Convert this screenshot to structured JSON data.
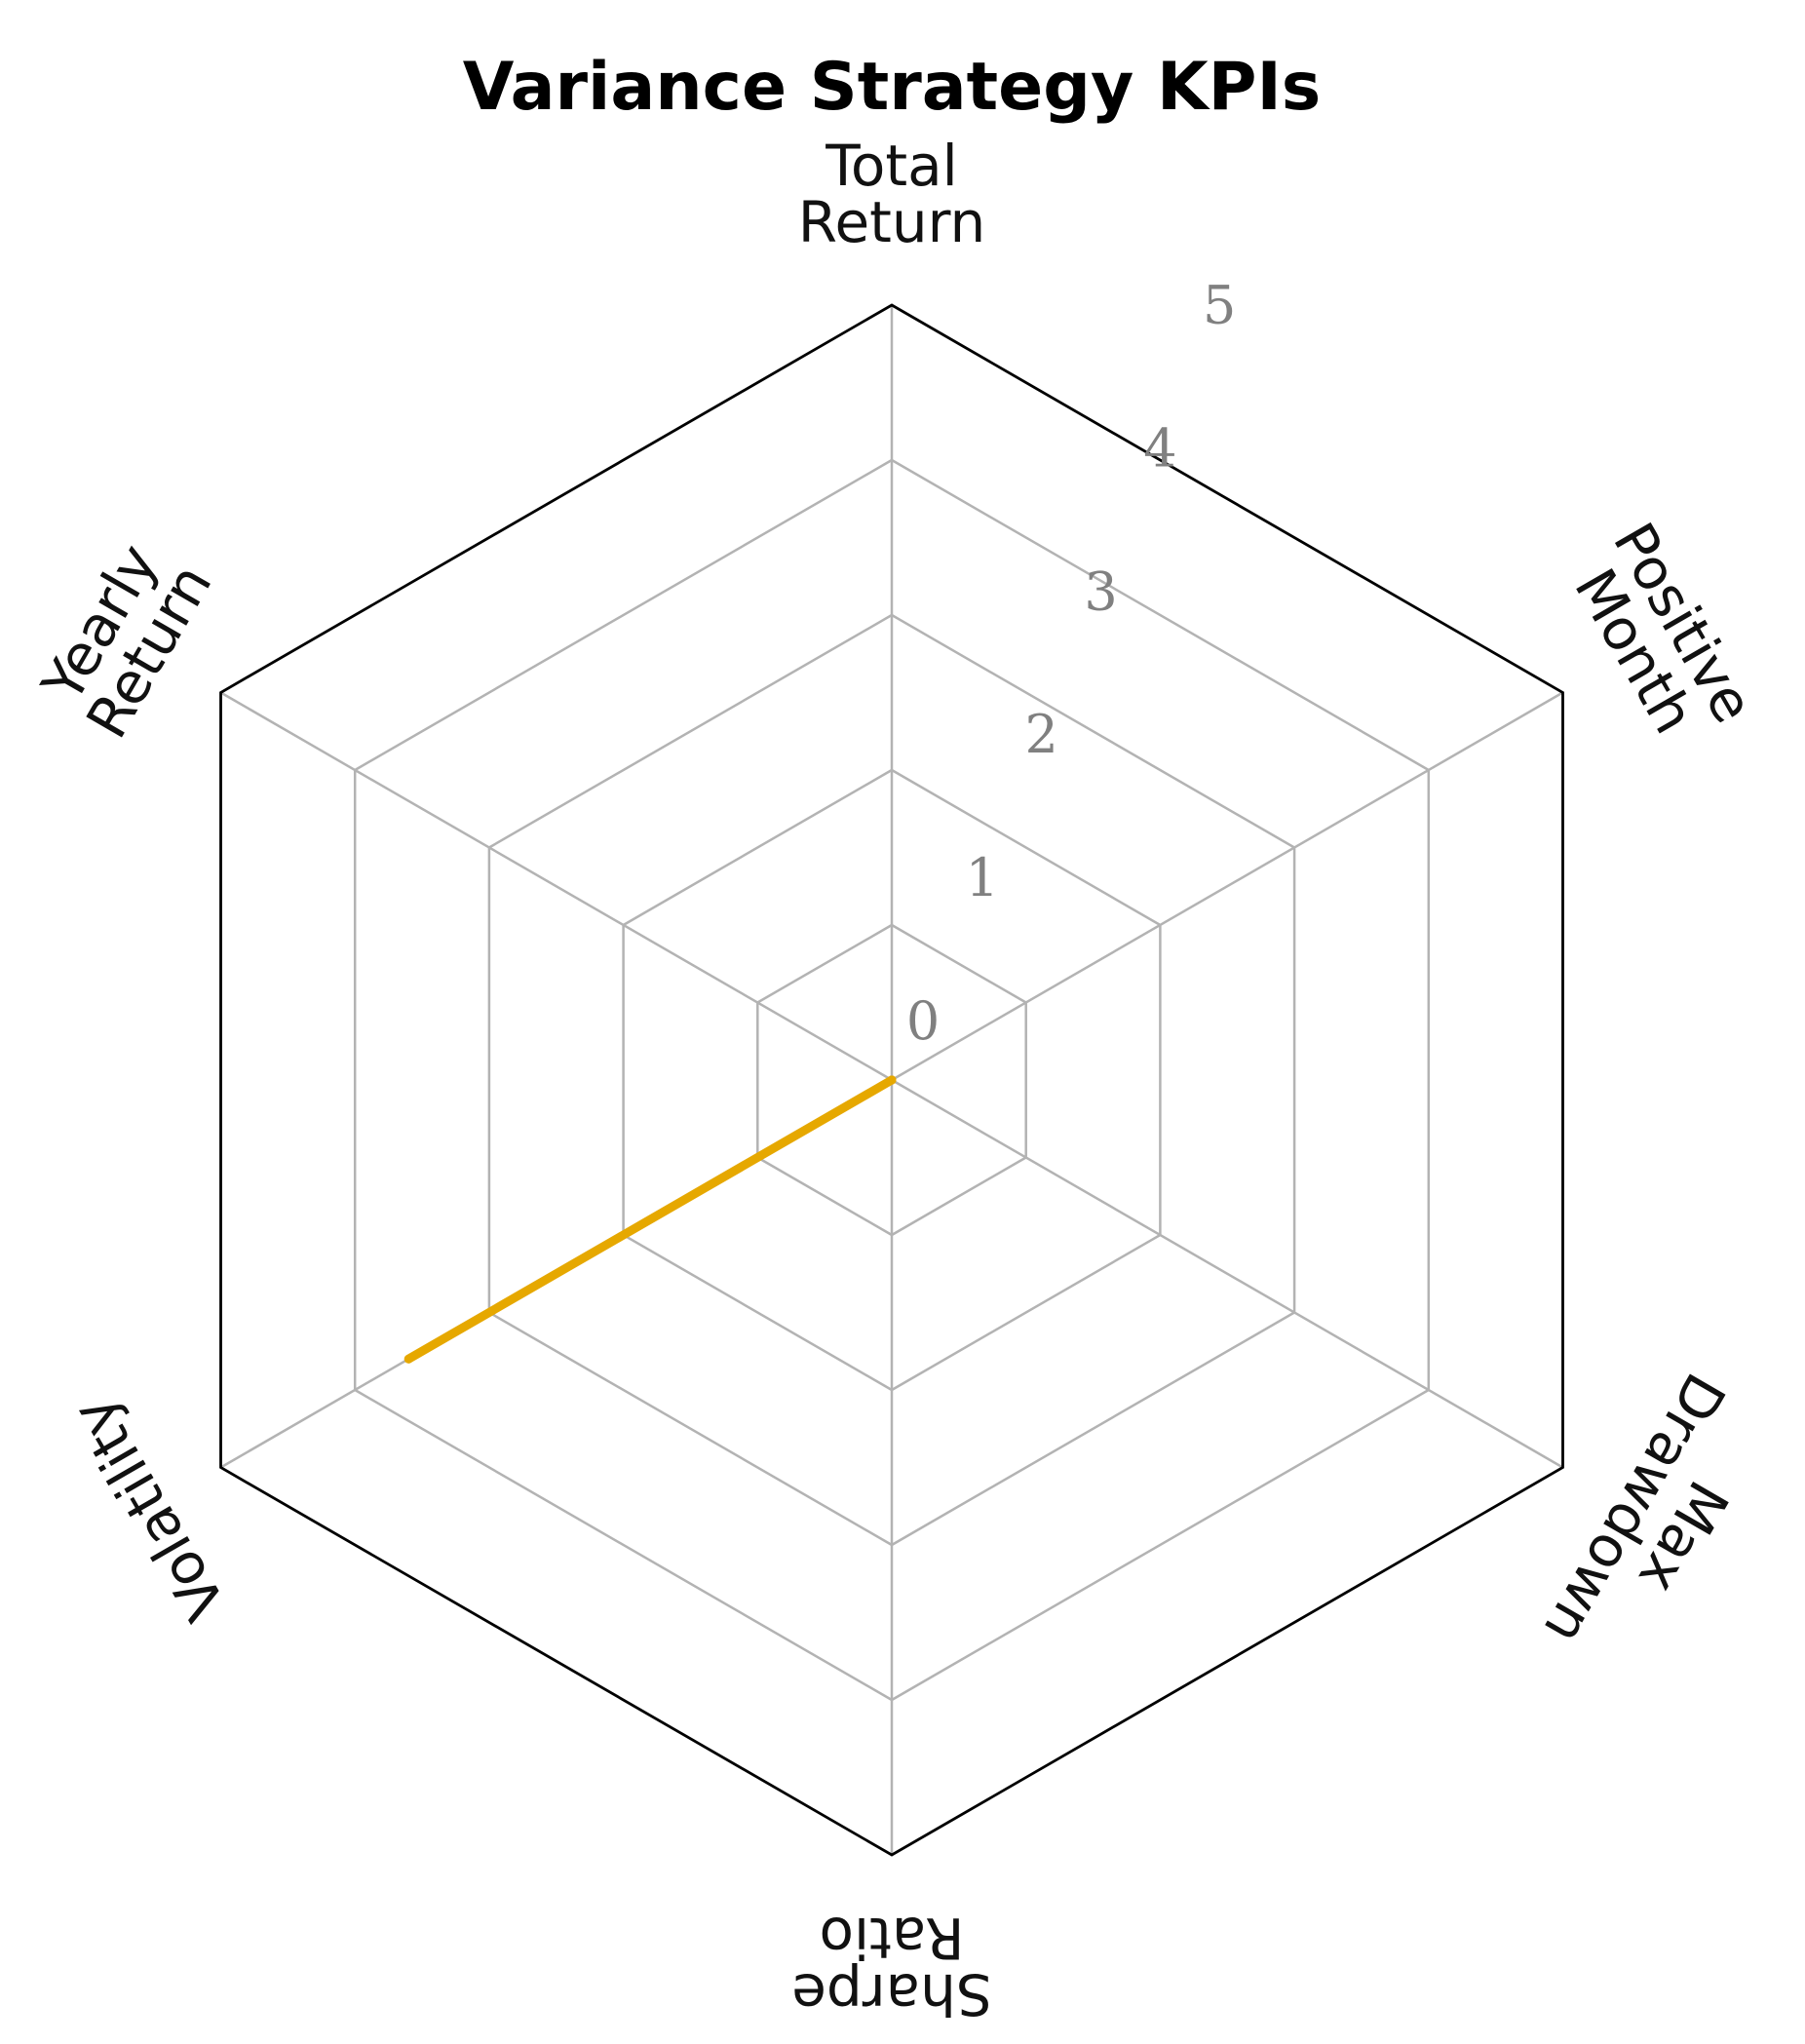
{
  "chart_data": {
    "type": "radar",
    "title": "Variance Strategy KPIs",
    "axes": [
      [
        "Total",
        "Return"
      ],
      [
        "Positive",
        "Month"
      ],
      [
        "Max",
        "Drawdown"
      ],
      [
        "Sharpe",
        "Ratio"
      ],
      [
        "Volatility"
      ],
      [
        "Yearly",
        "Return"
      ]
    ],
    "rlim": [
      0,
      5
    ],
    "rticks": [
      "0",
      "1",
      "2",
      "3",
      "4",
      "5"
    ],
    "grid": true,
    "series": [
      {
        "color": "#E6A800",
        "values": [
          0,
          0,
          0,
          0,
          3.6,
          0
        ]
      }
    ]
  }
}
